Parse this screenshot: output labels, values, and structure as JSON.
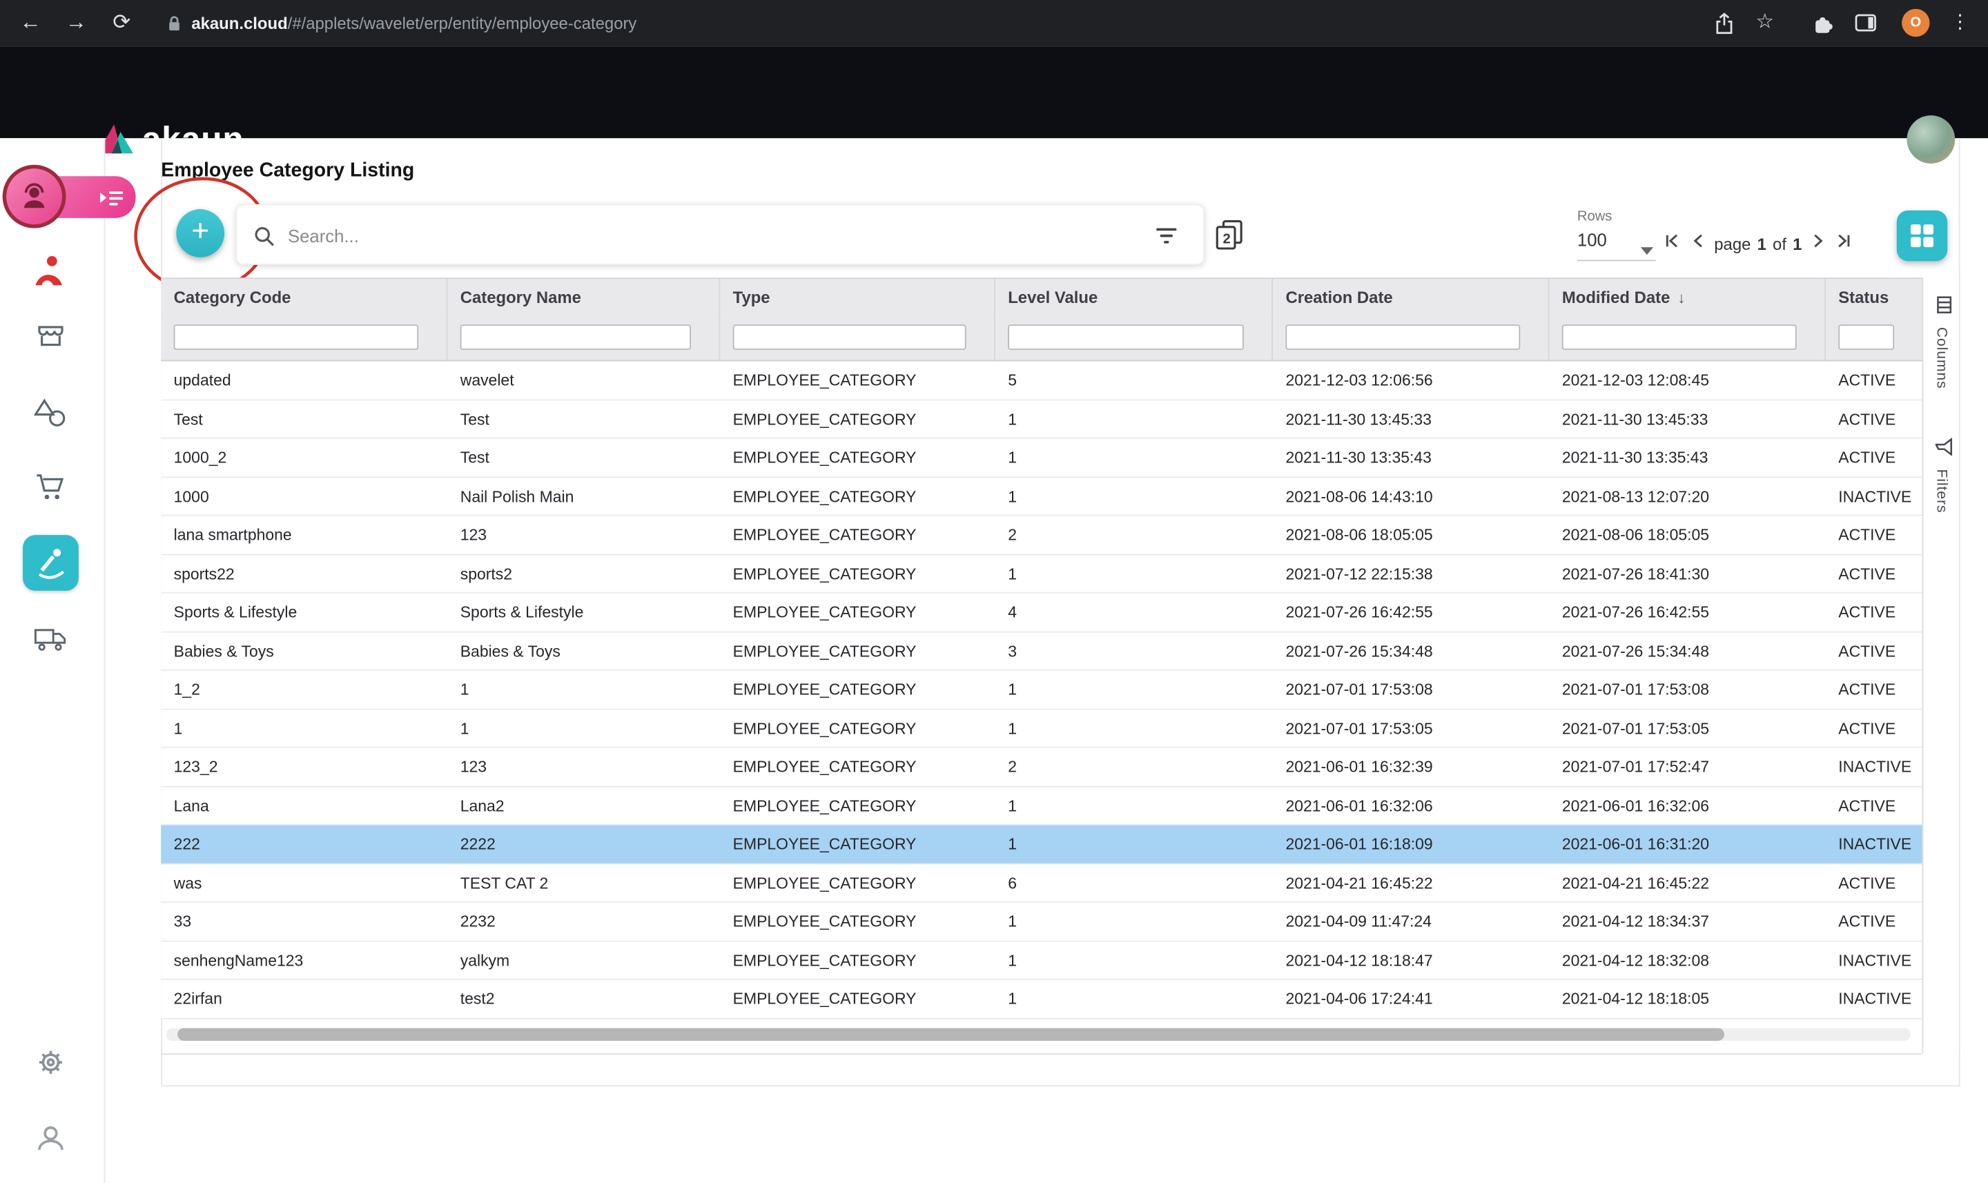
{
  "browser": {
    "back_icon": "←",
    "forward_icon": "→",
    "reload_icon": "⟳",
    "url_host": "akaun.cloud",
    "url_path": "/#/applets/wavelet/erp/entity/employee-category",
    "star_icon": "☆",
    "menu_icon": "⋮",
    "avatar_letter": "O"
  },
  "header": {
    "brand": "akaun"
  },
  "page": {
    "title": "Employee Category Listing"
  },
  "toolbar": {
    "add_icon": "+",
    "search_placeholder": "Search...",
    "pages_badge": "2",
    "rows_label": "Rows",
    "rows_per_page": "100",
    "page_label": "page",
    "page_current": "1",
    "of_label": "of",
    "page_total": "1"
  },
  "side_panel": {
    "columns_label": "Columns",
    "filters_label": "Filters"
  },
  "colors": {
    "accent_teal": "#2fbccb",
    "brand_pink": "#e9368b",
    "selected_row": "#a6d2f3",
    "annotation_red": "#d0342b"
  },
  "table": {
    "columns": [
      "Category Code",
      "Category Name",
      "Type",
      "Level Value",
      "Creation Date",
      "Modified Date",
      "Status"
    ],
    "sort_column": "Modified Date",
    "sort_indicator": "↓",
    "rows": [
      {
        "code": "updated",
        "name": "wavelet",
        "type": "EMPLOYEE_CATEGORY",
        "level": "5",
        "created": "2021-12-03 12:06:56",
        "modified": "2021-12-03 12:08:45",
        "status": "ACTIVE"
      },
      {
        "code": "Test",
        "name": "Test",
        "type": "EMPLOYEE_CATEGORY",
        "level": "1",
        "created": "2021-11-30 13:45:33",
        "modified": "2021-11-30 13:45:33",
        "status": "ACTIVE"
      },
      {
        "code": "1000_2",
        "name": "Test",
        "type": "EMPLOYEE_CATEGORY",
        "level": "1",
        "created": "2021-11-30 13:35:43",
        "modified": "2021-11-30 13:35:43",
        "status": "ACTIVE"
      },
      {
        "code": "1000",
        "name": "Nail Polish Main",
        "type": "EMPLOYEE_CATEGORY",
        "level": "1",
        "created": "2021-08-06 14:43:10",
        "modified": "2021-08-13 12:07:20",
        "status": "INACTIVE"
      },
      {
        "code": "lana smartphone",
        "name": "123",
        "type": "EMPLOYEE_CATEGORY",
        "level": "2",
        "created": "2021-08-06 18:05:05",
        "modified": "2021-08-06 18:05:05",
        "status": "ACTIVE"
      },
      {
        "code": "sports22",
        "name": "sports2",
        "type": "EMPLOYEE_CATEGORY",
        "level": "1",
        "created": "2021-07-12 22:15:38",
        "modified": "2021-07-26 18:41:30",
        "status": "ACTIVE"
      },
      {
        "code": "Sports & Lifestyle",
        "name": "Sports & Lifestyle",
        "type": "EMPLOYEE_CATEGORY",
        "level": "4",
        "created": "2021-07-26 16:42:55",
        "modified": "2021-07-26 16:42:55",
        "status": "ACTIVE"
      },
      {
        "code": "Babies & Toys",
        "name": "Babies & Toys",
        "type": "EMPLOYEE_CATEGORY",
        "level": "3",
        "created": "2021-07-26 15:34:48",
        "modified": "2021-07-26 15:34:48",
        "status": "ACTIVE"
      },
      {
        "code": "1_2",
        "name": "1",
        "type": "EMPLOYEE_CATEGORY",
        "level": "1",
        "created": "2021-07-01 17:53:08",
        "modified": "2021-07-01 17:53:08",
        "status": "ACTIVE"
      },
      {
        "code": "1",
        "name": "1",
        "type": "EMPLOYEE_CATEGORY",
        "level": "1",
        "created": "2021-07-01 17:53:05",
        "modified": "2021-07-01 17:53:05",
        "status": "ACTIVE"
      },
      {
        "code": "123_2",
        "name": "123",
        "type": "EMPLOYEE_CATEGORY",
        "level": "2",
        "created": "2021-06-01 16:32:39",
        "modified": "2021-07-01 17:52:47",
        "status": "INACTIVE"
      },
      {
        "code": "Lana",
        "name": "Lana2",
        "type": "EMPLOYEE_CATEGORY",
        "level": "1",
        "created": "2021-06-01 16:32:06",
        "modified": "2021-06-01 16:32:06",
        "status": "ACTIVE"
      },
      {
        "code": "222",
        "name": "2222",
        "type": "EMPLOYEE_CATEGORY",
        "level": "1",
        "created": "2021-06-01 16:18:09",
        "modified": "2021-06-01 16:31:20",
        "status": "INACTIVE",
        "selected": true
      },
      {
        "code": "was",
        "name": "TEST CAT 2",
        "type": "EMPLOYEE_CATEGORY",
        "level": "6",
        "created": "2021-04-21 16:45:22",
        "modified": "2021-04-21 16:45:22",
        "status": "ACTIVE"
      },
      {
        "code": "33",
        "name": "2232",
        "type": "EMPLOYEE_CATEGORY",
        "level": "1",
        "created": "2021-04-09 11:47:24",
        "modified": "2021-04-12 18:34:37",
        "status": "ACTIVE"
      },
      {
        "code": "senhengName123",
        "name": "yalkym",
        "type": "EMPLOYEE_CATEGORY",
        "level": "1",
        "created": "2021-04-12 18:18:47",
        "modified": "2021-04-12 18:32:08",
        "status": "INACTIVE"
      },
      {
        "code": "22irfan",
        "name": "test2",
        "type": "EMPLOYEE_CATEGORY",
        "level": "1",
        "created": "2021-04-06 17:24:41",
        "modified": "2021-04-12 18:18:05",
        "status": "INACTIVE"
      }
    ]
  }
}
